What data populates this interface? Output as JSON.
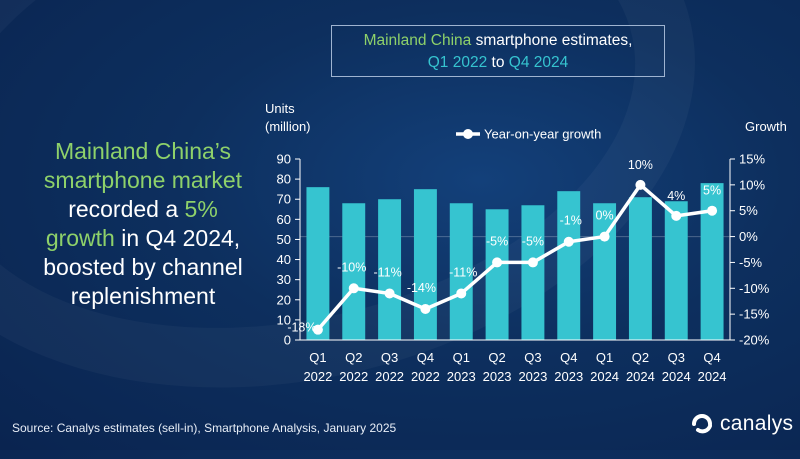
{
  "title": {
    "part1": "Mainland China",
    "part2": " smartphone estimates,",
    "part3": "Q1 2022",
    "part4": " to ",
    "part5": "Q4 2024"
  },
  "headline": {
    "line1": "Mainland China’s",
    "line2": "smartphone market",
    "line3a": "recorded a ",
    "line3b": "5%",
    "line4a": "growth",
    "line4b": " in Q4 2024,",
    "line5": "boosted by channel",
    "line6": "replenishment"
  },
  "source": "Source: Canalys estimates (sell-in), Smartphone Analysis, January 2025",
  "brand": "canalys",
  "colors": {
    "bar": "#36c4d0",
    "line": "#ffffff",
    "green": "#8ed16a",
    "cyan": "#36c4d0"
  },
  "chart_data": {
    "type": "bar",
    "categories": [
      [
        "Q1",
        "2022"
      ],
      [
        "Q2",
        "2022"
      ],
      [
        "Q3",
        "2022"
      ],
      [
        "Q4",
        "2022"
      ],
      [
        "Q1",
        "2023"
      ],
      [
        "Q2",
        "2023"
      ],
      [
        "Q3",
        "2023"
      ],
      [
        "Q4",
        "2023"
      ],
      [
        "Q1",
        "2024"
      ],
      [
        "Q2",
        "2024"
      ],
      [
        "Q3",
        "2024"
      ],
      [
        "Q4",
        "2024"
      ]
    ],
    "left_axis": {
      "title_line1": "Units",
      "title_line2": "(million)",
      "ylim": [
        0,
        90
      ],
      "ticks": [
        0,
        10,
        20,
        30,
        40,
        50,
        60,
        70,
        80,
        90
      ]
    },
    "right_axis": {
      "title": "Growth",
      "ylim": [
        -20,
        15
      ],
      "ticks": [
        "15%",
        "10%",
        "5%",
        "0%",
        "-5%",
        "-10%",
        "-15%",
        "-20%"
      ]
    },
    "bars": {
      "values": [
        76,
        68,
        70,
        75,
        68,
        65,
        67,
        74,
        68,
        71,
        69,
        78
      ]
    },
    "line_series": {
      "name": "Year-on-year growth",
      "values": [
        -18,
        -10,
        -11,
        -14,
        -11,
        -5,
        -5,
        -1,
        0,
        10,
        4,
        5
      ],
      "labels": [
        "-18%",
        "-10%",
        "-11%",
        "-14%",
        "-11%",
        "-5%",
        "-5%",
        "-1%",
        "0%",
        "10%",
        "4%",
        "5%"
      ]
    },
    "legend_position": "top"
  }
}
